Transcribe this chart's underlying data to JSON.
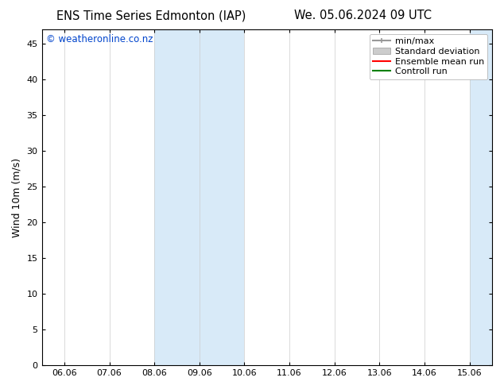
{
  "title_left": "ENS Time Series Edmonton (IAP)",
  "title_right": "We. 05.06.2024 09 UTC",
  "ylabel": "Wind 10m (m/s)",
  "watermark": "© weatheronline.co.nz",
  "watermark_color": "#0044cc",
  "background_color": "#ffffff",
  "plot_bg_color": "#ffffff",
  "ylim": [
    0,
    47
  ],
  "yticks": [
    0,
    5,
    10,
    15,
    20,
    25,
    30,
    35,
    40,
    45
  ],
  "xtick_labels": [
    "06.06",
    "07.06",
    "08.06",
    "09.06",
    "10.06",
    "11.06",
    "12.06",
    "13.06",
    "14.06",
    "15.06"
  ],
  "xtick_positions": [
    0,
    1,
    2,
    3,
    4,
    5,
    6,
    7,
    8,
    9
  ],
  "xlim": [
    -0.5,
    9.5
  ],
  "shaded_regions": [
    {
      "x_start": 2.0,
      "x_end": 3.0
    },
    {
      "x_start": 3.0,
      "x_end": 4.0
    },
    {
      "x_start": 9.0,
      "x_end": 9.5
    }
  ],
  "shaded_color": "#d8eaf8",
  "grid_color": "#cccccc",
  "legend_entries": [
    {
      "label": "min/max",
      "color": "#999999",
      "lw": 1.5
    },
    {
      "label": "Standard deviation",
      "color": "#cccccc",
      "lw": 8
    },
    {
      "label": "Ensemble mean run",
      "color": "#ff0000",
      "lw": 1.5
    },
    {
      "label": "Controll run",
      "color": "#008000",
      "lw": 1.5
    }
  ],
  "font_family": "DejaVu Sans",
  "title_fontsize": 10.5,
  "axis_fontsize": 9,
  "tick_fontsize": 8,
  "watermark_fontsize": 8.5,
  "legend_fontsize": 8
}
